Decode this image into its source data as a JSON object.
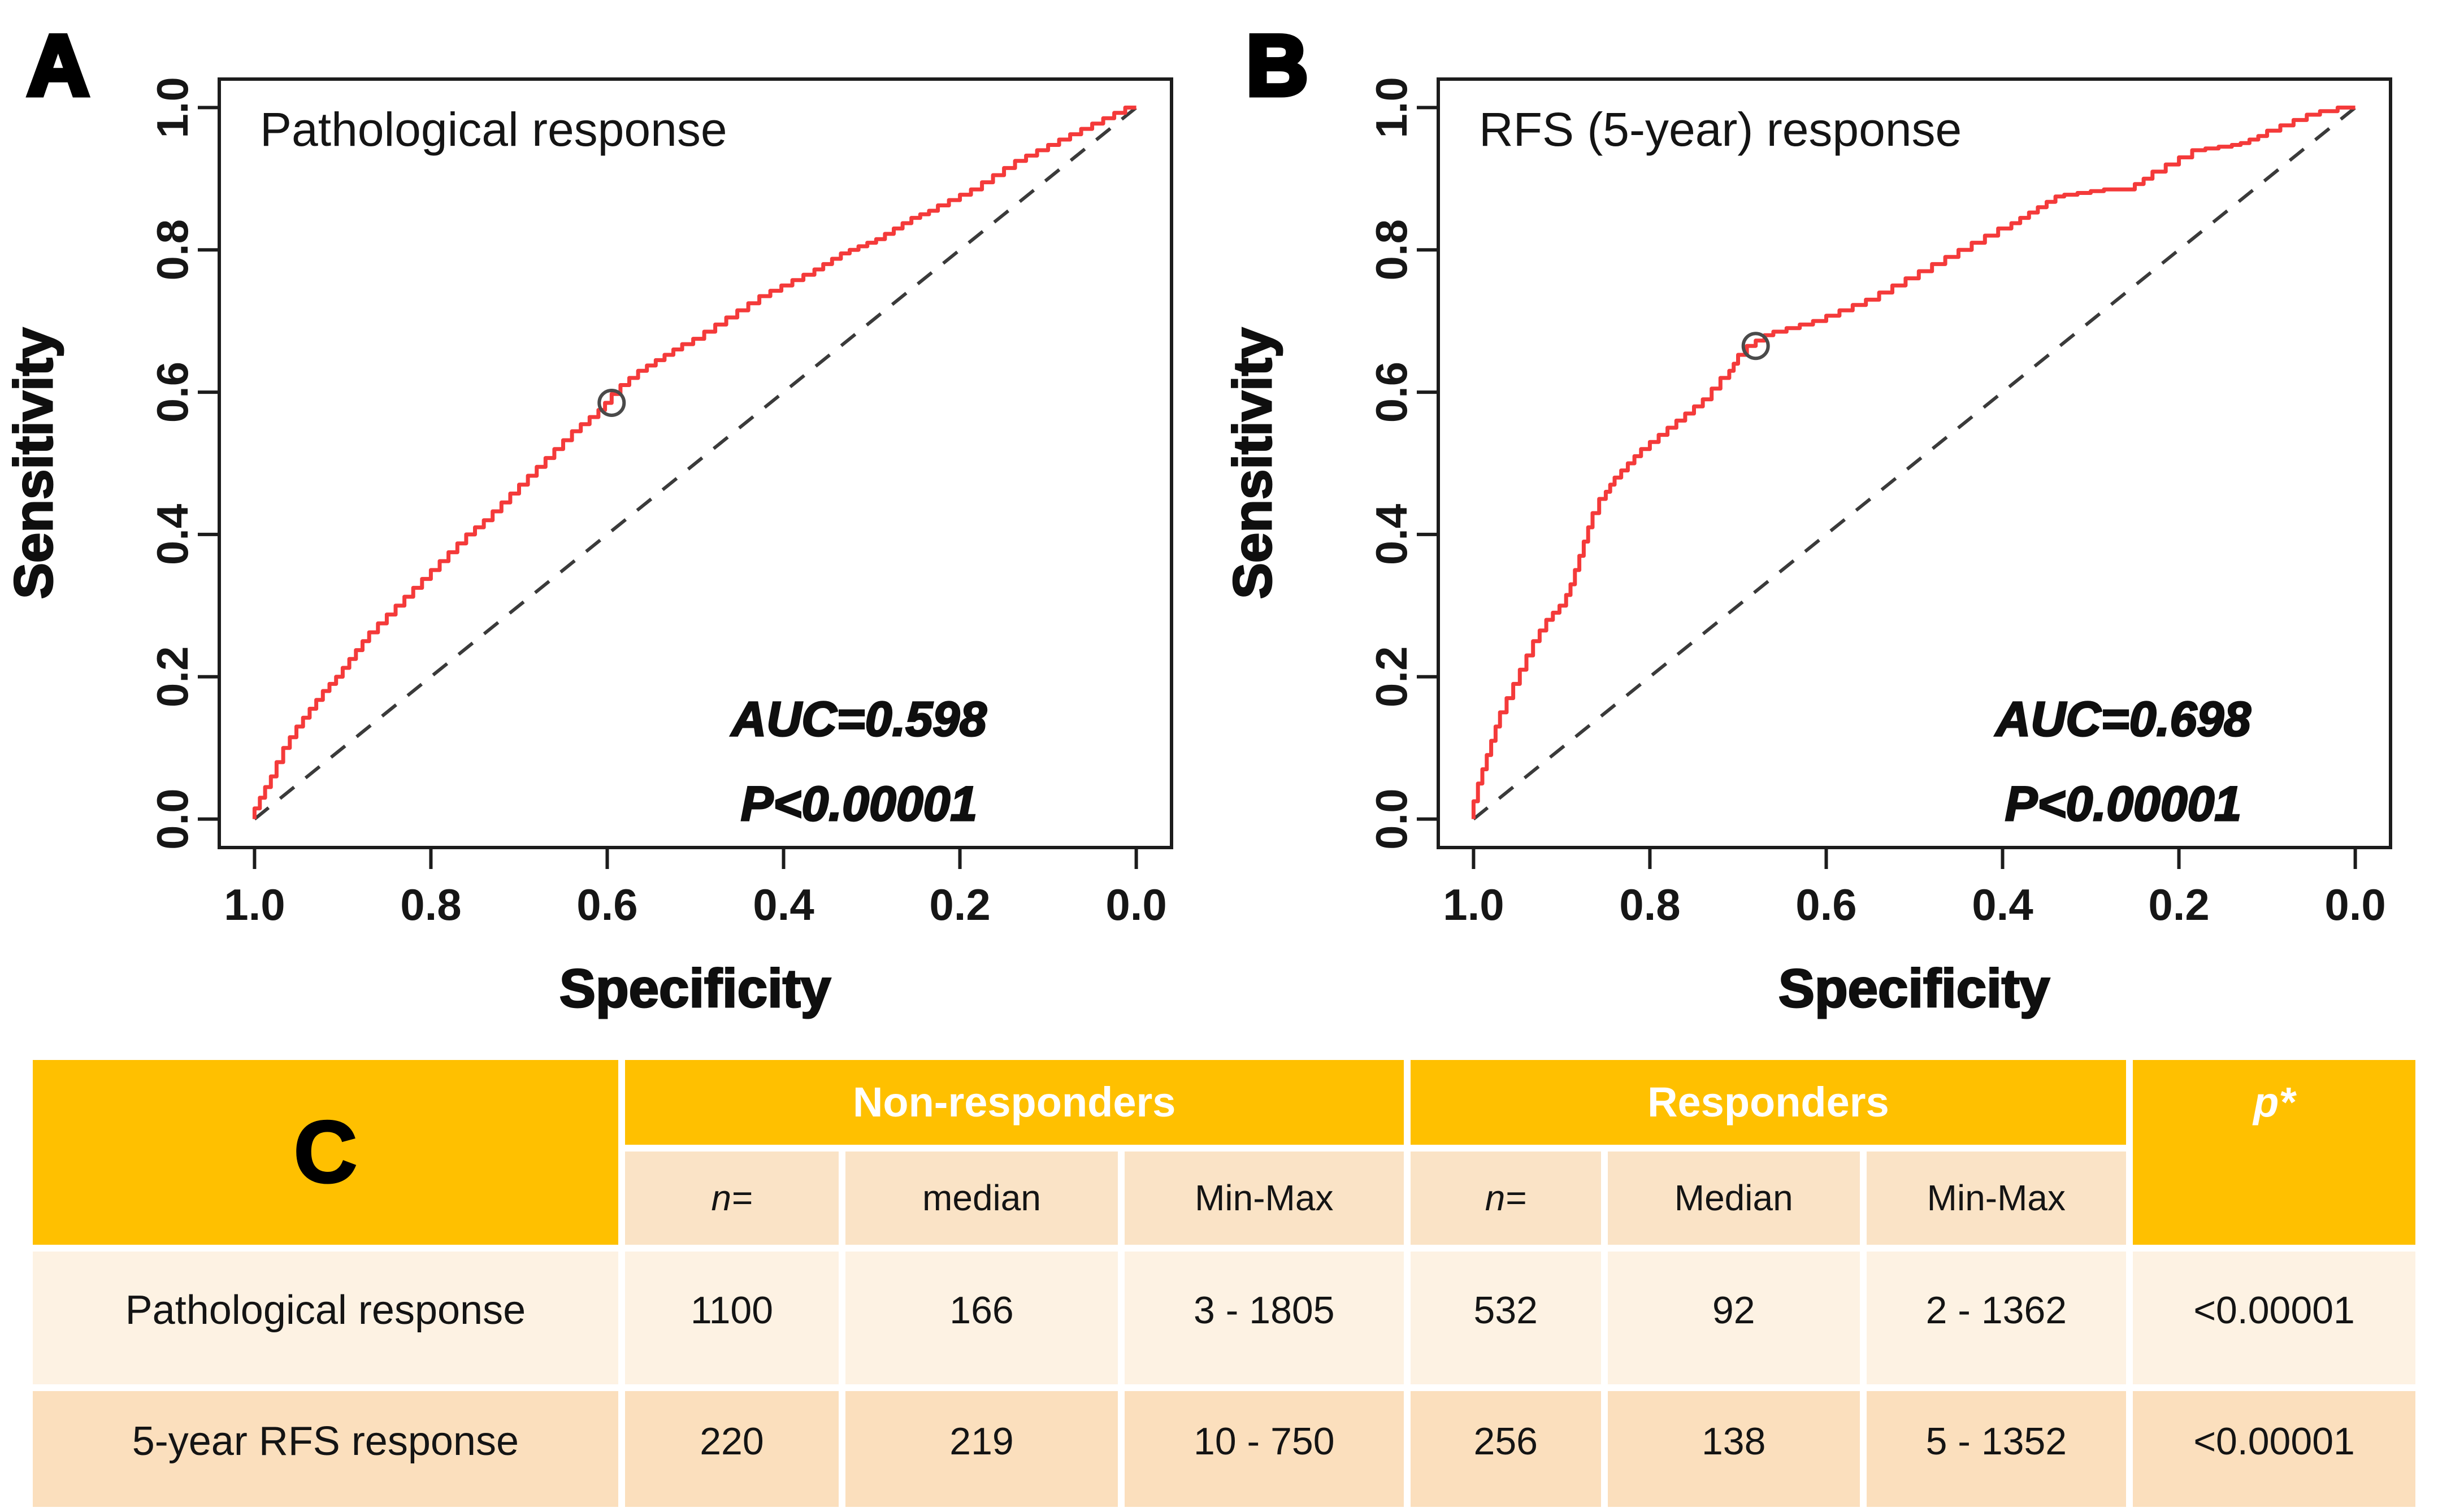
{
  "figure_background": "#ffffff",
  "colors": {
    "curve_red": "#f43a3a",
    "diagonal_gray": "#3a3a3a",
    "header_orange": "#FFC000",
    "subheader_peach": "#FAE3C6",
    "row_light_cream": "#FDF2E3",
    "row_dark_peach": "#FBDFBD",
    "header_text": "#ffffff"
  },
  "chart_data": [
    {
      "panel_label": "A",
      "type": "line",
      "title": "Pathological response",
      "xlabel": "Specificity",
      "ylabel": "Sensitivity",
      "x_ticks": [
        "1.0",
        "0.8",
        "0.6",
        "0.4",
        "0.2",
        "0.0"
      ],
      "y_ticks": [
        "0.0",
        "0.2",
        "0.4",
        "0.6",
        "0.8",
        "1.0"
      ],
      "x_axis_direction": "specificity 1.0 (left) to 0.0 (right)",
      "ylim": [
        0,
        1
      ],
      "auc_text": "AUC=0.598",
      "p_text": "P<0.00001",
      "curve_color": "#f43a3a",
      "diagonal_reference": true,
      "marker_fpr_tpr": [
        0.405,
        0.585
      ],
      "roc_points_fpr_tpr": [
        [
          0,
          0
        ],
        [
          0.012,
          0.03
        ],
        [
          0.025,
          0.06
        ],
        [
          0.04,
          0.1
        ],
        [
          0.055,
          0.13
        ],
        [
          0.07,
          0.155
        ],
        [
          0.085,
          0.18
        ],
        [
          0.1,
          0.2
        ],
        [
          0.115,
          0.225
        ],
        [
          0.13,
          0.25
        ],
        [
          0.15,
          0.275
        ],
        [
          0.17,
          0.3
        ],
        [
          0.19,
          0.325
        ],
        [
          0.21,
          0.35
        ],
        [
          0.23,
          0.375
        ],
        [
          0.25,
          0.4
        ],
        [
          0.27,
          0.42
        ],
        [
          0.29,
          0.445
        ],
        [
          0.31,
          0.47
        ],
        [
          0.33,
          0.495
        ],
        [
          0.35,
          0.52
        ],
        [
          0.37,
          0.545
        ],
        [
          0.39,
          0.565
        ],
        [
          0.405,
          0.585
        ],
        [
          0.425,
          0.61
        ],
        [
          0.445,
          0.63
        ],
        [
          0.465,
          0.645
        ],
        [
          0.485,
          0.66
        ],
        [
          0.51,
          0.675
        ],
        [
          0.535,
          0.695
        ],
        [
          0.56,
          0.715
        ],
        [
          0.585,
          0.735
        ],
        [
          0.61,
          0.75
        ],
        [
          0.635,
          0.765
        ],
        [
          0.655,
          0.78
        ],
        [
          0.675,
          0.795
        ],
        [
          0.695,
          0.805
        ],
        [
          0.715,
          0.815
        ],
        [
          0.735,
          0.83
        ],
        [
          0.755,
          0.845
        ],
        [
          0.775,
          0.855
        ],
        [
          0.8,
          0.87
        ],
        [
          0.825,
          0.885
        ],
        [
          0.85,
          0.905
        ],
        [
          0.875,
          0.925
        ],
        [
          0.9,
          0.94
        ],
        [
          0.925,
          0.955
        ],
        [
          0.95,
          0.97
        ],
        [
          0.975,
          0.985
        ],
        [
          1,
          1
        ]
      ]
    },
    {
      "panel_label": "B",
      "type": "line",
      "title": "RFS (5-year) response",
      "xlabel": "Specificity",
      "ylabel": "Sensitivity",
      "x_ticks": [
        "1.0",
        "0.8",
        "0.6",
        "0.4",
        "0.2",
        "0.0"
      ],
      "y_ticks": [
        "0.0",
        "0.2",
        "0.4",
        "0.6",
        "0.8",
        "1.0"
      ],
      "x_axis_direction": "specificity 1.0 (left) to 0.0 (right)",
      "ylim": [
        0,
        1
      ],
      "auc_text": "AUC=0.698",
      "p_text": "P<0.00001",
      "curve_color": "#f43a3a",
      "diagonal_reference": true,
      "marker_fpr_tpr": [
        0.32,
        0.665
      ],
      "roc_points_fpr_tpr": [
        [
          0,
          0
        ],
        [
          0.01,
          0.05
        ],
        [
          0.02,
          0.09
        ],
        [
          0.03,
          0.13
        ],
        [
          0.045,
          0.17
        ],
        [
          0.06,
          0.21
        ],
        [
          0.075,
          0.25
        ],
        [
          0.09,
          0.28
        ],
        [
          0.105,
          0.3
        ],
        [
          0.115,
          0.33
        ],
        [
          0.125,
          0.37
        ],
        [
          0.135,
          0.41
        ],
        [
          0.15,
          0.45
        ],
        [
          0.16,
          0.47
        ],
        [
          0.175,
          0.49
        ],
        [
          0.19,
          0.51
        ],
        [
          0.21,
          0.53
        ],
        [
          0.23,
          0.55
        ],
        [
          0.25,
          0.57
        ],
        [
          0.27,
          0.59
        ],
        [
          0.29,
          0.62
        ],
        [
          0.3,
          0.64
        ],
        [
          0.32,
          0.665
        ],
        [
          0.34,
          0.68
        ],
        [
          0.37,
          0.69
        ],
        [
          0.4,
          0.7
        ],
        [
          0.43,
          0.715
        ],
        [
          0.46,
          0.73
        ],
        [
          0.49,
          0.75
        ],
        [
          0.52,
          0.77
        ],
        [
          0.55,
          0.79
        ],
        [
          0.58,
          0.81
        ],
        [
          0.61,
          0.83
        ],
        [
          0.63,
          0.845
        ],
        [
          0.65,
          0.86
        ],
        [
          0.67,
          0.875
        ],
        [
          0.7,
          0.88
        ],
        [
          0.73,
          0.885
        ],
        [
          0.75,
          0.885
        ],
        [
          0.77,
          0.9
        ],
        [
          0.8,
          0.92
        ],
        [
          0.83,
          0.94
        ],
        [
          0.86,
          0.945
        ],
        [
          0.88,
          0.95
        ],
        [
          0.9,
          0.96
        ],
        [
          0.93,
          0.975
        ],
        [
          0.96,
          0.99
        ],
        [
          1,
          1
        ]
      ]
    }
  ],
  "table": {
    "panel_label": "C",
    "group_headers": [
      "Non-responders",
      "Responders"
    ],
    "p_header": "p*",
    "sub_headers": [
      "n=",
      "median",
      "Min-Max",
      "n=",
      "Median",
      "Min-Max"
    ],
    "rows": [
      {
        "label": "Pathological response",
        "values": [
          "1100",
          "166",
          "3 - 1805",
          "532",
          "92",
          "2 - 1362",
          "<0.00001"
        ]
      },
      {
        "label": "5-year RFS response",
        "values": [
          "220",
          "219",
          "10 - 750",
          "256",
          "138",
          "5 - 1352",
          "<0.00001"
        ]
      }
    ]
  }
}
